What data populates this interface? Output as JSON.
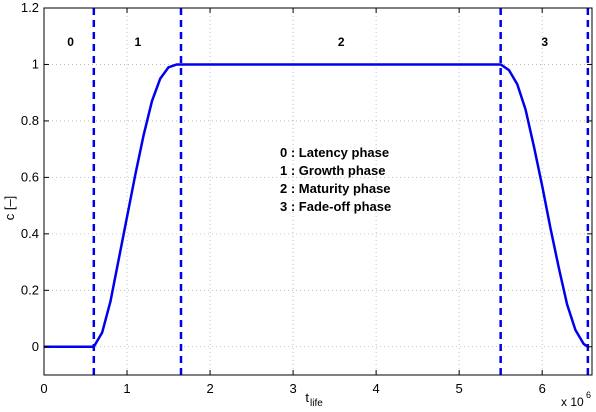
{
  "chart_data": {
    "type": "line",
    "title": "",
    "xlabel_main": "t",
    "xlabel_sub": "life",
    "ylabel": "c [–]",
    "x_multiplier_base": "x 10",
    "x_multiplier_exp": "6",
    "xlim": [
      0,
      6.6
    ],
    "ylim": [
      -0.1,
      1.2
    ],
    "xticks": [
      0,
      1,
      2,
      3,
      4,
      5,
      6
    ],
    "yticks": [
      0,
      0.2,
      0.4,
      0.6,
      0.8,
      1,
      1.2
    ],
    "xtick_labels": [
      "0",
      "1",
      "2",
      "3",
      "4",
      "5",
      "6"
    ],
    "ytick_labels": [
      "0",
      "0.2",
      "0.4",
      "0.6",
      "0.8",
      "1",
      "1.2"
    ],
    "grid": true,
    "series": [
      {
        "color": "#0000ee",
        "x": [
          0,
          0.6,
          0.7,
          0.8,
          0.9,
          1.0,
          1.1,
          1.2,
          1.3,
          1.4,
          1.5,
          1.6,
          1.65,
          5.5,
          5.6,
          5.7,
          5.8,
          5.9,
          6.0,
          6.1,
          6.2,
          6.3,
          6.4,
          6.5,
          6.55
        ],
        "y": [
          0,
          0,
          0.05,
          0.16,
          0.31,
          0.46,
          0.61,
          0.75,
          0.87,
          0.95,
          0.99,
          1.0,
          1.0,
          1.0,
          0.98,
          0.93,
          0.84,
          0.71,
          0.57,
          0.42,
          0.28,
          0.15,
          0.06,
          0.01,
          0
        ]
      }
    ],
    "phase_boundaries": [
      0.6,
      1.65,
      5.5,
      6.55
    ],
    "phase_boundary_color": "#0000ee",
    "phase_labels": [
      {
        "text": "0",
        "x": 0.32
      },
      {
        "text": "1",
        "x": 1.13
      },
      {
        "text": "2",
        "x": 3.58
      },
      {
        "text": "3",
        "x": 6.03
      }
    ],
    "annotations": [
      "0 : Latency phase",
      "1 : Growth phase",
      "2 : Maturity phase",
      "3 : Fade-off phase"
    ]
  }
}
